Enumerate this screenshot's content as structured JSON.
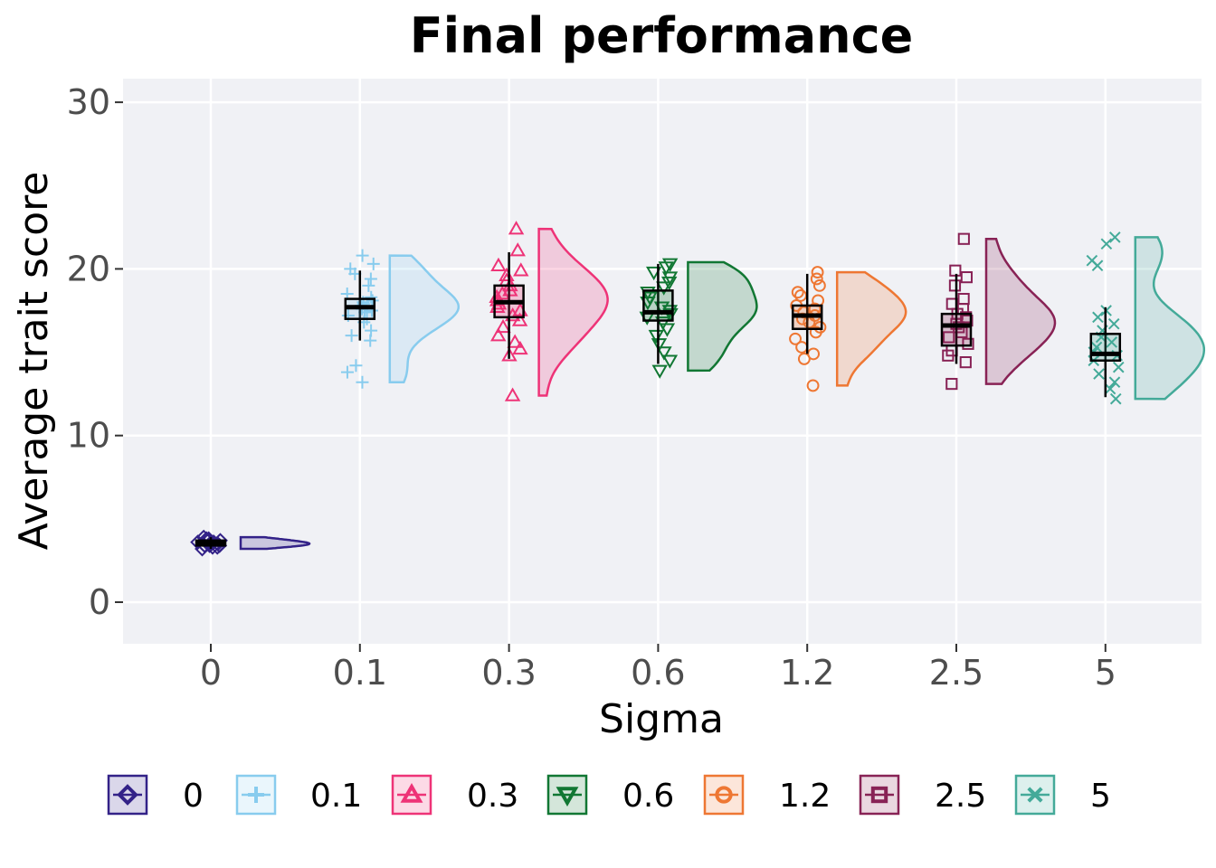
{
  "chart_data": {
    "type": "raincloud",
    "title": "Final performance",
    "xlabel": "Sigma",
    "ylabel": "Average trait score",
    "categories": [
      "0",
      "0.1",
      "0.3",
      "0.6",
      "1.2",
      "2.5",
      "5"
    ],
    "ylim": [
      -2.5,
      32
    ],
    "yticks": [
      0,
      10,
      20,
      30
    ],
    "grid": true,
    "legend_position": "bottom",
    "series": [
      {
        "name": "0",
        "color": "#332288",
        "marker": "diamond",
        "box": {
          "min": 3.2,
          "q1": 3.4,
          "median": 3.5,
          "q3": 3.7,
          "max": 3.9
        },
        "violin": {
          "min": 3.2,
          "max": 3.9
        },
        "points": [
          3.2,
          3.3,
          3.3,
          3.4,
          3.4,
          3.4,
          3.5,
          3.5,
          3.5,
          3.5,
          3.6,
          3.6,
          3.6,
          3.7,
          3.7,
          3.8,
          3.8,
          3.9
        ]
      },
      {
        "name": "0.1",
        "color": "#88CCEE",
        "marker": "plus",
        "box": {
          "min": 15.7,
          "q1": 17.0,
          "median": 17.7,
          "q3": 18.2,
          "max": 19.9
        },
        "violin": {
          "min": 13.2,
          "max": 20.8
        },
        "points": [
          13.2,
          13.8,
          14.2,
          15.7,
          16.0,
          16.3,
          16.8,
          17.0,
          17.2,
          17.4,
          17.5,
          17.6,
          17.8,
          17.9,
          18.0,
          18.1,
          18.3,
          18.5,
          19.0,
          19.4,
          19.7,
          20.0,
          20.3,
          20.8
        ]
      },
      {
        "name": "0.3",
        "color": "#EE3377",
        "marker": "triangle-up",
        "box": {
          "min": 14.6,
          "q1": 17.1,
          "median": 18.0,
          "q3": 19.0,
          "max": 21.0
        },
        "violin": {
          "min": 12.4,
          "max": 22.4
        },
        "points": [
          12.4,
          14.8,
          15.2,
          15.6,
          16.0,
          16.5,
          16.9,
          17.2,
          17.5,
          17.7,
          17.9,
          18.1,
          18.3,
          18.5,
          18.7,
          19.0,
          19.3,
          19.6,
          19.9,
          20.2,
          21.1,
          22.4
        ]
      },
      {
        "name": "0.6",
        "color": "#117733",
        "marker": "triangle-down",
        "box": {
          "min": 14.3,
          "q1": 16.9,
          "median": 17.4,
          "q3": 18.7,
          "max": 20.3
        },
        "violin": {
          "min": 13.9,
          "max": 20.4
        },
        "points": [
          13.9,
          14.5,
          15.0,
          15.5,
          16.0,
          16.4,
          16.8,
          17.1,
          17.3,
          17.5,
          17.7,
          18.0,
          18.3,
          18.6,
          18.9,
          19.2,
          19.5,
          19.8,
          20.1,
          20.3
        ]
      },
      {
        "name": "1.2",
        "color": "#EE7733",
        "marker": "circle",
        "box": {
          "min": 14.9,
          "q1": 16.4,
          "median": 17.2,
          "q3": 17.8,
          "max": 19.7
        },
        "violin": {
          "min": 13.0,
          "max": 19.8
        },
        "points": [
          13.0,
          14.6,
          14.9,
          15.3,
          15.8,
          16.2,
          16.5,
          16.8,
          17.0,
          17.2,
          17.4,
          17.6,
          17.8,
          18.1,
          18.4,
          18.6,
          19.0,
          19.4,
          19.8
        ]
      },
      {
        "name": "2.5",
        "color": "#882255",
        "marker": "square",
        "box": {
          "min": 14.3,
          "q1": 15.4,
          "median": 16.6,
          "q3": 17.3,
          "max": 19.7
        },
        "violin": {
          "min": 13.1,
          "max": 21.8
        },
        "points": [
          13.1,
          14.4,
          14.8,
          15.1,
          15.5,
          15.9,
          16.2,
          16.5,
          16.7,
          16.9,
          17.1,
          17.3,
          17.6,
          17.9,
          18.2,
          19.0,
          19.5,
          19.9,
          21.8
        ]
      },
      {
        "name": "5",
        "color": "#44AA99",
        "marker": "x",
        "box": {
          "min": 12.3,
          "q1": 14.5,
          "median": 14.9,
          "q3": 16.1,
          "max": 17.7
        },
        "violin": {
          "min": 12.2,
          "max": 21.9
        },
        "points": [
          12.2,
          12.8,
          13.2,
          13.7,
          14.1,
          14.5,
          14.8,
          15.0,
          15.3,
          15.6,
          15.9,
          16.3,
          16.7,
          17.1,
          17.5,
          20.2,
          20.5,
          21.5,
          21.9
        ]
      }
    ]
  }
}
